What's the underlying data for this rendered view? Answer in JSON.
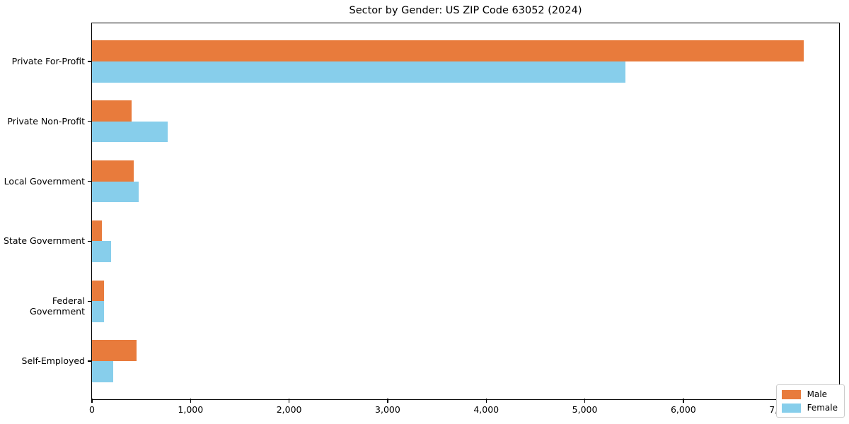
{
  "chart_data": {
    "type": "bar",
    "orientation": "horizontal",
    "title": "Sector by Gender: US ZIP Code 63052 (2024)",
    "categories": [
      "Private For-Profit",
      "Private Non-Profit",
      "Local Government",
      "State Government",
      "Federal Government",
      "Self-Employed"
    ],
    "series": [
      {
        "name": "Male",
        "color": "#E87B3C",
        "values": [
          7220,
          400,
          420,
          100,
          125,
          450
        ]
      },
      {
        "name": "Female",
        "color": "#87CEEB",
        "values": [
          5410,
          770,
          475,
          195,
          120,
          215
        ]
      }
    ],
    "xlabel": "",
    "ylabel": "",
    "xlim": [
      0,
      7580
    ],
    "xticks": [
      0,
      1000,
      2000,
      3000,
      4000,
      5000,
      6000,
      7000
    ],
    "xtick_labels": [
      "0",
      "1,000",
      "2,000",
      "3,000",
      "4,000",
      "5,000",
      "6,000",
      "7,000"
    ],
    "grid": false,
    "legend_position": "lower right"
  }
}
